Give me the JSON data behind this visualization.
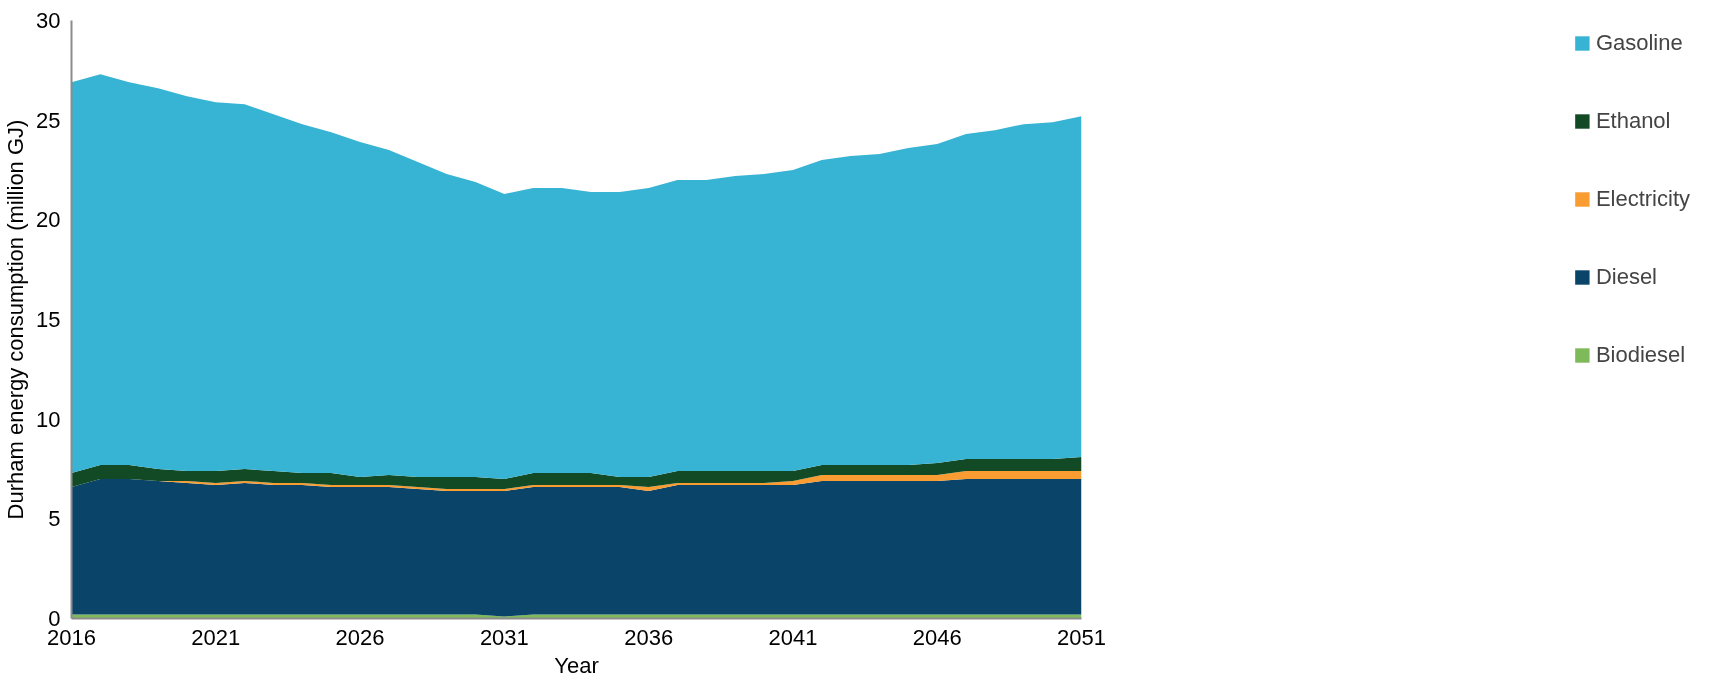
{
  "chart_data": {
    "type": "area",
    "stacked": true,
    "xlabel": "Year",
    "ylabel": "Durham energy consumption (million GJ)",
    "x": [
      2016,
      2017,
      2018,
      2019,
      2020,
      2021,
      2022,
      2023,
      2024,
      2025,
      2026,
      2027,
      2028,
      2029,
      2030,
      2031,
      2032,
      2033,
      2034,
      2035,
      2036,
      2037,
      2038,
      2039,
      2040,
      2041,
      2042,
      2043,
      2044,
      2045,
      2046,
      2047,
      2048,
      2049,
      2050,
      2051
    ],
    "series": [
      {
        "name": "Biodiesel",
        "color": "#7fba5a",
        "values": [
          0.2,
          0.2,
          0.2,
          0.2,
          0.2,
          0.2,
          0.2,
          0.2,
          0.2,
          0.2,
          0.2,
          0.2,
          0.2,
          0.2,
          0.2,
          0.1,
          0.2,
          0.2,
          0.2,
          0.2,
          0.2,
          0.2,
          0.2,
          0.2,
          0.2,
          0.2,
          0.2,
          0.2,
          0.2,
          0.2,
          0.2,
          0.2,
          0.2,
          0.2,
          0.2,
          0.2
        ]
      },
      {
        "name": "Diesel",
        "color": "#0a4468",
        "values": [
          6.4,
          6.8,
          6.8,
          6.7,
          6.6,
          6.5,
          6.6,
          6.5,
          6.5,
          6.4,
          6.4,
          6.4,
          6.3,
          6.2,
          6.2,
          6.3,
          6.4,
          6.4,
          6.4,
          6.4,
          6.2,
          6.5,
          6.5,
          6.5,
          6.5,
          6.5,
          6.7,
          6.7,
          6.7,
          6.7,
          6.7,
          6.8,
          6.8,
          6.8,
          6.8,
          6.8
        ]
      },
      {
        "name": "Electricity",
        "color": "#f99d33",
        "values": [
          0,
          0,
          0,
          0,
          0.1,
          0.1,
          0.1,
          0.1,
          0.1,
          0.1,
          0.1,
          0.1,
          0.1,
          0.1,
          0.1,
          0.1,
          0.1,
          0.1,
          0.1,
          0.1,
          0.2,
          0.1,
          0.1,
          0.1,
          0.1,
          0.2,
          0.3,
          0.3,
          0.3,
          0.3,
          0.3,
          0.4,
          0.4,
          0.4,
          0.4,
          0.4
        ]
      },
      {
        "name": "Ethanol",
        "color": "#114a25",
        "values": [
          0.7,
          0.7,
          0.7,
          0.6,
          0.5,
          0.6,
          0.6,
          0.6,
          0.5,
          0.6,
          0.4,
          0.5,
          0.5,
          0.6,
          0.6,
          0.5,
          0.6,
          0.6,
          0.6,
          0.4,
          0.5,
          0.6,
          0.6,
          0.6,
          0.6,
          0.5,
          0.5,
          0.5,
          0.5,
          0.5,
          0.6,
          0.6,
          0.6,
          0.6,
          0.6,
          0.7
        ]
      },
      {
        "name": "Gasoline",
        "color": "#37b3d4",
        "values": [
          19.6,
          19.6,
          19.2,
          19.1,
          18.8,
          18.5,
          18.3,
          17.9,
          17.5,
          17.1,
          16.8,
          16.3,
          15.8,
          15.2,
          14.8,
          14.3,
          14.3,
          14.3,
          14.1,
          14.3,
          14.5,
          14.6,
          14.6,
          14.8,
          14.9,
          15.1,
          15.3,
          15.5,
          15.6,
          15.9,
          16.0,
          16.3,
          16.5,
          16.8,
          16.9,
          17.1
        ]
      }
    ],
    "xlim": [
      2016,
      2051
    ],
    "ylim": [
      0,
      30
    ],
    "xticks": [
      2016,
      2021,
      2026,
      2031,
      2036,
      2041,
      2046,
      2051
    ],
    "yticks": [
      0,
      5,
      10,
      15,
      20,
      25,
      30
    ],
    "grid": false,
    "legend": "right"
  }
}
